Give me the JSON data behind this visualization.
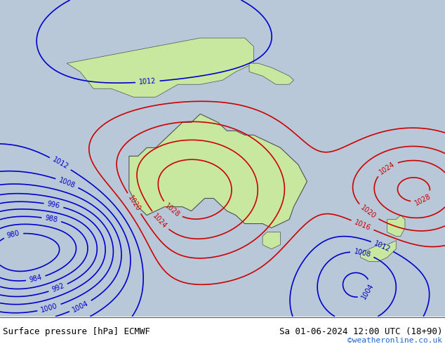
{
  "title_left": "Surface pressure [hPa] ECMWF",
  "title_right": "Sa 01-06-2024 12:00 UTC (18+90)",
  "copyright": "©weatheronline.co.uk",
  "background_color": "#d0d8e0",
  "land_color": "#c8e8a0",
  "water_color": "#b8ccd8",
  "border_color": "#404040",
  "footer_bg": "#ffffff",
  "isobar_low_color": "#0000cc",
  "isobar_high_color": "#cc0000",
  "isobar_transition_color": "#000000",
  "label_fontsize": 8,
  "footer_fontsize": 9,
  "fig_width": 6.34,
  "fig_height": 4.9,
  "dpi": 100
}
